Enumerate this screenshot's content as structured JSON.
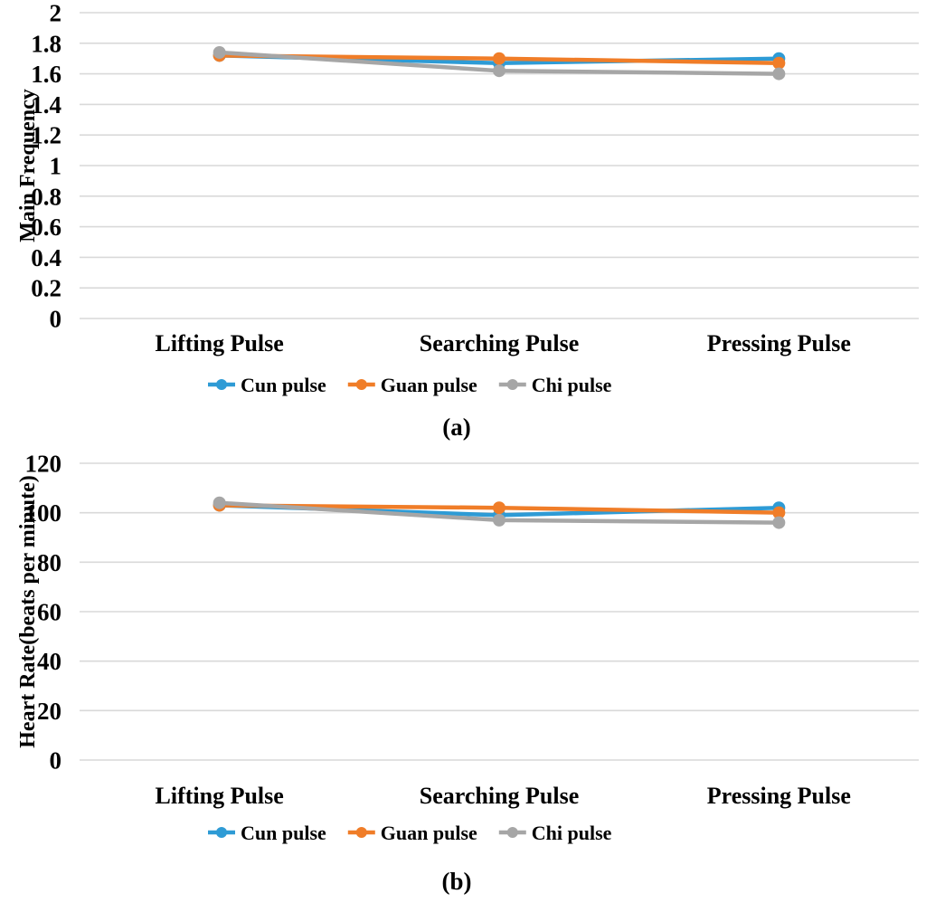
{
  "figure": {
    "background": "#ffffff",
    "text_color": "#000000"
  },
  "colors": {
    "cun": "#2E9BD5",
    "guan": "#F07D28",
    "chi": "#A6A6A6",
    "gridline": "#D9D9D9"
  },
  "chart_data": [
    {
      "type": "line",
      "panel_label": "(a)",
      "ylabel": "Main Frequency",
      "xlabel": "",
      "ylim": [
        0,
        2
      ],
      "ytick_labels": [
        "2",
        "1.8",
        "1.6",
        "1.4",
        "1.2",
        "1",
        "0.8",
        "0.6",
        "0.4",
        "0.2",
        "0"
      ],
      "categories": [
        "Lifting Pulse",
        "Searching Pulse",
        "Pressing Pulse"
      ],
      "series": [
        {
          "name": "Cun pulse",
          "color": "#2E9BD5",
          "values": [
            1.72,
            1.67,
            1.7
          ]
        },
        {
          "name": "Guan pulse",
          "color": "#F07D28",
          "values": [
            1.72,
            1.7,
            1.67
          ]
        },
        {
          "name": "Chi pulse",
          "color": "#A6A6A6",
          "values": [
            1.74,
            1.62,
            1.6
          ]
        }
      ],
      "legend": [
        "Cun pulse",
        "Guan pulse",
        "Chi pulse"
      ],
      "legend_position": "bottom",
      "grid": true,
      "marker": "circle"
    },
    {
      "type": "line",
      "panel_label": "(b)",
      "ylabel": "Heart Rate(beats per minute)",
      "xlabel": "",
      "ylim": [
        0,
        120
      ],
      "ytick_labels": [
        "120",
        "100",
        "80",
        "60",
        "40",
        "20",
        "0"
      ],
      "categories": [
        "Lifting Pulse",
        "Searching Pulse",
        "Pressing Pulse"
      ],
      "series": [
        {
          "name": "Cun pulse",
          "color": "#2E9BD5",
          "values": [
            103,
            99,
            102
          ]
        },
        {
          "name": "Guan pulse",
          "color": "#F07D28",
          "values": [
            103,
            102,
            100
          ]
        },
        {
          "name": "Chi pulse",
          "color": "#A6A6A6",
          "values": [
            104,
            97,
            96
          ]
        }
      ],
      "legend": [
        "Cun pulse",
        "Guan pulse",
        "Chi pulse"
      ],
      "legend_position": "bottom",
      "grid": true,
      "marker": "circle"
    }
  ]
}
